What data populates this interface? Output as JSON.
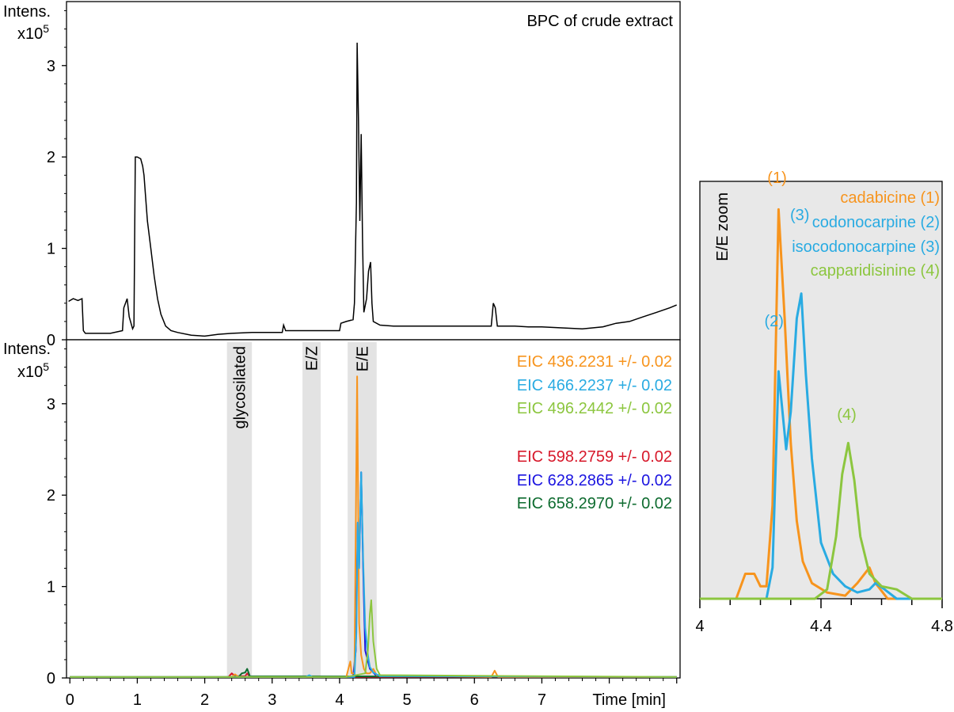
{
  "figure": {
    "background": "#ffffff"
  },
  "chart_data": [
    {
      "id": "top",
      "type": "line",
      "title": "BPC of crude extract",
      "ylabel_line1": "Intens.",
      "ylabel_line2": "x10",
      "ylabel_exp": "5",
      "xlim": [
        -0.05,
        9.05
      ],
      "ylim": [
        0,
        3.7
      ],
      "yticks": [
        0,
        1,
        2,
        3
      ],
      "series": [
        {
          "color": "#000000",
          "points": [
            [
              -0.02,
              0.42
            ],
            [
              0.05,
              0.45
            ],
            [
              0.12,
              0.43
            ],
            [
              0.18,
              0.45
            ],
            [
              0.2,
              0.1
            ],
            [
              0.23,
              0.07
            ],
            [
              0.6,
              0.07
            ],
            [
              0.78,
              0.1
            ],
            [
              0.8,
              0.35
            ],
            [
              0.85,
              0.45
            ],
            [
              0.88,
              0.25
            ],
            [
              0.93,
              0.12
            ],
            [
              0.95,
              0.15
            ],
            [
              0.97,
              2.0
            ],
            [
              1.0,
              2.0
            ],
            [
              1.05,
              1.98
            ],
            [
              1.08,
              1.9
            ],
            [
              1.1,
              1.8
            ],
            [
              1.12,
              1.6
            ],
            [
              1.15,
              1.3
            ],
            [
              1.2,
              1.0
            ],
            [
              1.25,
              0.7
            ],
            [
              1.3,
              0.45
            ],
            [
              1.35,
              0.28
            ],
            [
              1.42,
              0.15
            ],
            [
              1.5,
              0.1
            ],
            [
              1.6,
              0.08
            ],
            [
              1.8,
              0.05
            ],
            [
              2.0,
              0.04
            ],
            [
              2.2,
              0.06
            ],
            [
              2.4,
              0.07
            ],
            [
              2.7,
              0.08
            ],
            [
              3.0,
              0.08
            ],
            [
              3.15,
              0.08
            ],
            [
              3.17,
              0.16
            ],
            [
              3.2,
              0.1
            ],
            [
              3.5,
              0.1
            ],
            [
              3.8,
              0.1
            ],
            [
              4.0,
              0.1
            ],
            [
              4.02,
              0.18
            ],
            [
              4.1,
              0.2
            ],
            [
              4.2,
              0.22
            ],
            [
              4.22,
              0.4
            ],
            [
              4.25,
              1.5
            ],
            [
              4.26,
              3.25
            ],
            [
              4.28,
              2.4
            ],
            [
              4.3,
              1.3
            ],
            [
              4.32,
              2.25
            ],
            [
              4.34,
              1.1
            ],
            [
              4.36,
              0.3
            ],
            [
              4.4,
              0.45
            ],
            [
              4.43,
              0.75
            ],
            [
              4.46,
              0.85
            ],
            [
              4.48,
              0.4
            ],
            [
              4.5,
              0.2
            ],
            [
              4.6,
              0.16
            ],
            [
              4.8,
              0.15
            ],
            [
              5.0,
              0.15
            ],
            [
              5.5,
              0.15
            ],
            [
              6.0,
              0.15
            ],
            [
              6.25,
              0.15
            ],
            [
              6.28,
              0.4
            ],
            [
              6.31,
              0.35
            ],
            [
              6.34,
              0.15
            ],
            [
              6.6,
              0.15
            ],
            [
              6.8,
              0.14
            ],
            [
              7.0,
              0.14
            ],
            [
              7.3,
              0.13
            ],
            [
              7.6,
              0.12
            ],
            [
              7.9,
              0.14
            ],
            [
              8.1,
              0.18
            ],
            [
              8.3,
              0.2
            ],
            [
              8.5,
              0.25
            ],
            [
              8.7,
              0.3
            ],
            [
              8.9,
              0.35
            ],
            [
              9.0,
              0.38
            ]
          ]
        }
      ]
    },
    {
      "id": "bottom",
      "type": "line",
      "ylabel_line1": "Intens.",
      "ylabel_line2": "x10",
      "ylabel_exp": "5",
      "xlabel": "Time [min]",
      "xlim": [
        -0.05,
        9.05
      ],
      "ylim": [
        0,
        3.7
      ],
      "xticks": [
        0,
        1,
        2,
        3,
        4,
        5,
        6,
        7
      ],
      "yticks": [
        0,
        1,
        2,
        3
      ],
      "bands": [
        {
          "x0": 2.33,
          "x1": 2.7,
          "label": "glycosilated"
        },
        {
          "x0": 3.45,
          "x1": 3.72,
          "label": "E/Z"
        },
        {
          "x0": 4.12,
          "x1": 4.55,
          "label": "E/E"
        }
      ],
      "legend": [
        {
          "text": "EIC 436.2231 +/- 0.02",
          "color": "#f7941d"
        },
        {
          "text": "EIC 466.2237 +/- 0.02",
          "color": "#29abe2"
        },
        {
          "text": "EIC 496.2442 +/- 0.02",
          "color": "#8cc63f"
        },
        {
          "text": "EIC 598.2759 +/- 0.02",
          "color": "#d7182a"
        },
        {
          "text": "EIC 628.2865 +/- 0.02",
          "color": "#1b14e0"
        },
        {
          "text": "EIC 658.2970 +/- 0.02",
          "color": "#0d6b2f"
        }
      ],
      "series": [
        {
          "color": "#d7182a",
          "points": [
            [
              0,
              0.01
            ],
            [
              2.35,
              0.01
            ],
            [
              2.4,
              0.05
            ],
            [
              2.45,
              0.02
            ],
            [
              2.6,
              0.02
            ],
            [
              2.63,
              0.05
            ],
            [
              2.67,
              0.01
            ],
            [
              9.0,
              0.01
            ]
          ]
        },
        {
          "color": "#1b14e0",
          "points": [
            [
              0,
              0.01
            ],
            [
              2.42,
              0.01
            ],
            [
              2.45,
              0.03
            ],
            [
              2.48,
              0.01
            ],
            [
              4.2,
              0.01
            ],
            [
              4.24,
              0.3
            ],
            [
              4.27,
              1.7
            ],
            [
              4.29,
              1.2
            ],
            [
              4.32,
              2.25
            ],
            [
              4.35,
              1.2
            ],
            [
              4.38,
              0.3
            ],
            [
              4.45,
              0.1
            ],
            [
              4.55,
              0.02
            ],
            [
              9.0,
              0.01
            ]
          ]
        },
        {
          "color": "#0d6b2f",
          "points": [
            [
              0,
              0.01
            ],
            [
              2.5,
              0.01
            ],
            [
              2.55,
              0.05
            ],
            [
              2.6,
              0.06
            ],
            [
              2.63,
              0.1
            ],
            [
              2.67,
              0.02
            ],
            [
              9.0,
              0.01
            ]
          ]
        },
        {
          "color": "#f7941d",
          "points": [
            [
              0,
              0.01
            ],
            [
              2.4,
              0.01
            ],
            [
              2.45,
              0.04
            ],
            [
              2.5,
              0.01
            ],
            [
              4.1,
              0.01
            ],
            [
              4.13,
              0.1
            ],
            [
              4.16,
              0.18
            ],
            [
              4.18,
              0.05
            ],
            [
              4.22,
              0.05
            ],
            [
              4.26,
              3.3
            ],
            [
              4.29,
              0.6
            ],
            [
              4.32,
              0.25
            ],
            [
              4.36,
              0.1
            ],
            [
              4.4,
              0.05
            ],
            [
              4.45,
              0.05
            ],
            [
              4.5,
              0.1
            ],
            [
              4.55,
              0.03
            ],
            [
              6.25,
              0.01
            ],
            [
              6.3,
              0.08
            ],
            [
              6.35,
              0.01
            ],
            [
              9.0,
              0.01
            ]
          ]
        },
        {
          "color": "#29abe2",
          "points": [
            [
              0,
              0.01
            ],
            [
              3.5,
              0.01
            ],
            [
              3.55,
              0.03
            ],
            [
              3.6,
              0.01
            ],
            [
              4.22,
              0.01
            ],
            [
              4.25,
              0.5
            ],
            [
              4.27,
              1.7
            ],
            [
              4.29,
              1.2
            ],
            [
              4.32,
              2.25
            ],
            [
              4.35,
              1.3
            ],
            [
              4.38,
              0.55
            ],
            [
              4.42,
              0.25
            ],
            [
              4.45,
              0.12
            ],
            [
              4.5,
              0.06
            ],
            [
              4.55,
              0.04
            ],
            [
              4.6,
              0.02
            ],
            [
              9.0,
              0.01
            ]
          ]
        },
        {
          "color": "#8cc63f",
          "points": [
            [
              0,
              0.01
            ],
            [
              4.1,
              0.01
            ],
            [
              4.38,
              0.05
            ],
            [
              4.42,
              0.3
            ],
            [
              4.45,
              0.7
            ],
            [
              4.47,
              0.85
            ],
            [
              4.5,
              0.4
            ],
            [
              4.55,
              0.1
            ],
            [
              4.6,
              0.03
            ],
            [
              9.0,
              0.01
            ]
          ]
        }
      ]
    },
    {
      "id": "zoom",
      "type": "line",
      "title": "E/E zoom",
      "xlim": [
        4.0,
        4.8
      ],
      "ylim": [
        0,
        1.34
      ],
      "xticks": [
        4,
        4.4,
        4.8
      ],
      "xtick_labels": [
        "4",
        "4.4",
        "4.8"
      ],
      "background": "#e8e8e8",
      "legend": [
        {
          "text": "cadabicine (1)",
          "color": "#f7941d"
        },
        {
          "text": "codonocarpine (2)",
          "color": "#29abe2"
        },
        {
          "text": "isocodonocarpine (3)",
          "color": "#29abe2"
        },
        {
          "text": "capparidisinine (4)",
          "color": "#8cc63f"
        }
      ],
      "peak_labels": [
        {
          "text": "(1)",
          "x": 4.255,
          "y": 1.32,
          "color": "#f7941d"
        },
        {
          "text": "(2)",
          "x": 4.245,
          "y": 0.86,
          "color": "#29abe2"
        },
        {
          "text": "(3)",
          "x": 4.33,
          "y": 1.2,
          "color": "#29abe2"
        },
        {
          "text": "(4)",
          "x": 4.485,
          "y": 0.56,
          "color": "#8cc63f"
        }
      ],
      "series": [
        {
          "name": "cadabicine (1)",
          "color": "#f7941d",
          "points": [
            [
              4.0,
              0.0
            ],
            [
              4.12,
              0.0
            ],
            [
              4.15,
              0.08
            ],
            [
              4.18,
              0.08
            ],
            [
              4.2,
              0.04
            ],
            [
              4.22,
              0.04
            ],
            [
              4.24,
              0.3
            ],
            [
              4.26,
              1.25
            ],
            [
              4.28,
              0.9
            ],
            [
              4.3,
              0.5
            ],
            [
              4.32,
              0.25
            ],
            [
              4.34,
              0.12
            ],
            [
              4.37,
              0.05
            ],
            [
              4.42,
              0.02
            ],
            [
              4.48,
              0.01
            ],
            [
              4.52,
              0.05
            ],
            [
              4.56,
              0.1
            ],
            [
              4.58,
              0.05
            ],
            [
              4.62,
              0.0
            ],
            [
              4.8,
              0.0
            ]
          ]
        },
        {
          "name": "codonocarpine (2) / isocodonocarpine (3)",
          "color": "#29abe2",
          "points": [
            [
              4.0,
              0.0
            ],
            [
              4.22,
              0.0
            ],
            [
              4.24,
              0.1
            ],
            [
              4.26,
              0.73
            ],
            [
              4.285,
              0.48
            ],
            [
              4.3,
              0.6
            ],
            [
              4.32,
              0.9
            ],
            [
              4.335,
              0.98
            ],
            [
              4.35,
              0.72
            ],
            [
              4.37,
              0.45
            ],
            [
              4.4,
              0.18
            ],
            [
              4.44,
              0.08
            ],
            [
              4.48,
              0.04
            ],
            [
              4.52,
              0.02
            ],
            [
              4.56,
              0.03
            ],
            [
              4.58,
              0.05
            ],
            [
              4.61,
              0.03
            ],
            [
              4.65,
              0.0
            ],
            [
              4.8,
              0.0
            ]
          ]
        },
        {
          "name": "capparidisinine (4)",
          "color": "#8cc63f",
          "points": [
            [
              4.0,
              0.0
            ],
            [
              4.38,
              0.0
            ],
            [
              4.42,
              0.03
            ],
            [
              4.45,
              0.2
            ],
            [
              4.47,
              0.4
            ],
            [
              4.49,
              0.5
            ],
            [
              4.51,
              0.38
            ],
            [
              4.53,
              0.2
            ],
            [
              4.56,
              0.08
            ],
            [
              4.6,
              0.04
            ],
            [
              4.65,
              0.03
            ],
            [
              4.7,
              0.0
            ],
            [
              4.8,
              0.0
            ]
          ]
        }
      ]
    }
  ]
}
